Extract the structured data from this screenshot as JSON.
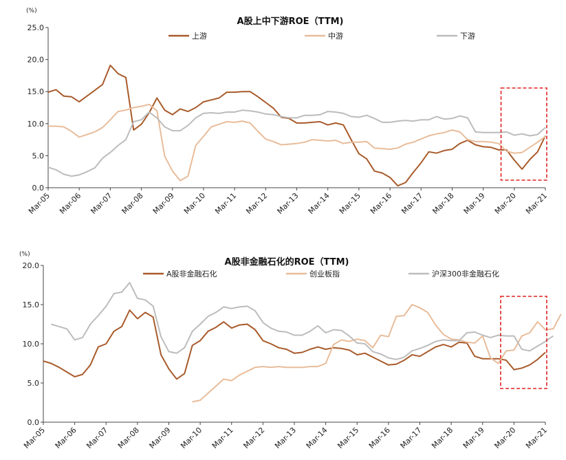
{
  "chart_data": [
    {
      "type": "line",
      "title": "A股上中下游ROE（TTM)",
      "unit": "(%)",
      "ylim": [
        0,
        25
      ],
      "yticks": [
        "0.0",
        "5.0",
        "10.0",
        "15.0",
        "20.0",
        "25.0"
      ],
      "xticks": [
        "Mar-05",
        "Mar-06",
        "Mar-07",
        "Mar-08",
        "Mar-09",
        "Mar-10",
        "Mar-11",
        "Mar-12",
        "Mar-13",
        "Mar-14",
        "Mar-15",
        "Mar-16",
        "Mar-17",
        "Mar-18",
        "Mar-19",
        "Mar-20",
        "Mar-21"
      ],
      "x_start": 2005.0,
      "x_step": 0.25,
      "x_end": 2021.0,
      "legend_position": "top",
      "highlight": {
        "from": 2019.75,
        "to": 2021.0,
        "color": "#e02020"
      },
      "series": [
        {
          "name": "上游",
          "color": "#a85a2a",
          "values": [
            14.9,
            15.3,
            14.3,
            14.2,
            13.4,
            14.3,
            15.2,
            16.1,
            19.1,
            17.8,
            17.2,
            9.0,
            9.9,
            11.7,
            14.0,
            12.1,
            11.4,
            12.3,
            11.9,
            12.5,
            13.4,
            13.7,
            14.0,
            14.9,
            14.9,
            15.0,
            15.0,
            14.2,
            13.3,
            12.4,
            11.0,
            10.8,
            10.1,
            10.1,
            10.2,
            10.3,
            9.8,
            10.1,
            9.8,
            7.5,
            5.3,
            4.5,
            2.6,
            2.3,
            1.6,
            0.3,
            0.8,
            2.4,
            3.9,
            5.6,
            5.4,
            5.8,
            6.0,
            6.9,
            7.4,
            6.7,
            6.4,
            6.3,
            5.9,
            5.9,
            4.3,
            2.9,
            4.4,
            5.6,
            8.1
          ]
        },
        {
          "name": "中游",
          "color": "#e8bc9a",
          "values": [
            9.6,
            9.6,
            9.5,
            8.8,
            7.9,
            8.3,
            8.7,
            9.4,
            10.6,
            11.9,
            12.1,
            12.5,
            12.7,
            13.0,
            12.0,
            4.9,
            2.6,
            1.1,
            1.8,
            6.6,
            8.0,
            9.5,
            9.9,
            10.3,
            10.2,
            10.4,
            10.1,
            8.8,
            7.6,
            7.2,
            6.7,
            6.8,
            6.9,
            7.1,
            7.5,
            7.4,
            7.3,
            7.4,
            6.9,
            7.1,
            7.1,
            7.2,
            6.2,
            6.1,
            6.0,
            6.2,
            6.8,
            7.1,
            7.6,
            8.1,
            8.4,
            8.6,
            9.0,
            8.7,
            7.5,
            7.2,
            7.2,
            7.1,
            6.9,
            5.7,
            5.4,
            5.5,
            6.3,
            7.1,
            8.0
          ]
        },
        {
          "name": "下游",
          "color": "#bcbcbc",
          "values": [
            3.2,
            2.8,
            2.1,
            1.8,
            2.0,
            2.5,
            3.1,
            4.6,
            5.5,
            6.6,
            7.5,
            10.3,
            10.6,
            11.8,
            10.9,
            9.5,
            8.9,
            8.9,
            9.7,
            10.9,
            11.6,
            11.7,
            11.6,
            11.8,
            11.8,
            12.1,
            12.0,
            11.8,
            11.5,
            11.4,
            11.1,
            10.9,
            10.9,
            11.3,
            11.3,
            11.4,
            11.9,
            11.8,
            11.6,
            11.1,
            11.0,
            11.3,
            10.8,
            10.2,
            10.2,
            10.4,
            10.5,
            10.4,
            10.6,
            10.6,
            11.1,
            10.7,
            10.8,
            11.2,
            10.9,
            8.7,
            8.6,
            8.6,
            8.6,
            8.7,
            8.2,
            8.4,
            8.1,
            8.3,
            9.4
          ]
        }
      ]
    },
    {
      "type": "line",
      "title": "A股非金融石化的ROE（TTM)",
      "unit": "(%)",
      "ylim": [
        0,
        20
      ],
      "yticks": [
        "0.0",
        "5.0",
        "10.0",
        "15.0",
        "20.0"
      ],
      "xticks": [
        "Mar-05",
        "Mar-06",
        "Mar-07",
        "Mar-08",
        "Mar-09",
        "Mar-10",
        "Mar-11",
        "Mar-12",
        "Mar-13",
        "Mar-14",
        "Mar-15",
        "Mar-16",
        "Mar-17",
        "Mar-18",
        "Mar-19",
        "Mar-20",
        "Mar-21"
      ],
      "x_start": 2005.0,
      "x_step": 0.25,
      "x_end": 2021.0,
      "legend_position": "top",
      "highlight": {
        "from": 2019.75,
        "to": 2021.0,
        "color": "#e02020"
      },
      "series": [
        {
          "name": "A股非金融石化",
          "color": "#a85a2a",
          "start": 2005.0,
          "values": [
            7.8,
            7.5,
            7.0,
            6.4,
            5.8,
            6.1,
            7.3,
            9.6,
            10.0,
            11.6,
            12.2,
            14.3,
            13.2,
            14.0,
            13.4,
            8.6,
            6.8,
            5.5,
            6.2,
            9.8,
            10.4,
            11.6,
            12.1,
            12.8,
            12.0,
            12.4,
            12.5,
            11.8,
            10.4,
            10.0,
            9.5,
            9.3,
            8.8,
            8.9,
            9.3,
            9.6,
            9.3,
            9.5,
            9.4,
            9.2,
            8.6,
            8.8,
            8.3,
            7.8,
            7.3,
            7.4,
            7.9,
            8.6,
            8.4,
            9.0,
            9.6,
            9.9,
            9.6,
            10.2,
            10.1,
            8.4,
            8.1,
            8.1,
            8.1,
            7.9,
            6.7,
            6.9,
            7.3,
            8.0,
            8.9
          ]
        },
        {
          "name": "创业板指",
          "color": "#e8bc9a",
          "start": 2009.75,
          "values": [
            2.6,
            2.8,
            3.7,
            4.6,
            5.5,
            5.3,
            6.0,
            6.5,
            7.0,
            7.1,
            7.0,
            7.1,
            7.0,
            7.0,
            7.0,
            7.1,
            7.1,
            7.5,
            9.9,
            10.5,
            10.3,
            10.6,
            10.4,
            9.5,
            11.1,
            10.9,
            13.5,
            13.6,
            15.0,
            14.6,
            14.0,
            12.4,
            11.2,
            10.6,
            10.5,
            10.2,
            10.1,
            11.0,
            8.2,
            7.5,
            9.1,
            9.2,
            11.0,
            11.4,
            12.8,
            11.8,
            11.9,
            13.8
          ]
        },
        {
          "name": "沪深300非金融石化",
          "color": "#bcbcbc",
          "start": 2005.25,
          "values": [
            12.5,
            12.2,
            11.9,
            10.5,
            10.8,
            12.5,
            13.6,
            14.8,
            16.4,
            16.6,
            17.8,
            15.8,
            15.6,
            14.8,
            10.9,
            9.0,
            8.8,
            9.5,
            11.6,
            12.5,
            13.5,
            14.0,
            14.7,
            14.5,
            14.7,
            14.8,
            14.2,
            12.7,
            12.0,
            11.6,
            11.5,
            11.1,
            11.1,
            11.6,
            12.3,
            11.4,
            11.8,
            11.7,
            11.0,
            10.1,
            10.0,
            9.0,
            8.7,
            8.2,
            8.0,
            8.3,
            9.1,
            9.4,
            9.8,
            10.3,
            10.5,
            10.4,
            10.4,
            11.4,
            11.5,
            11.1,
            10.8,
            11.1,
            11.0,
            11.0,
            9.3,
            9.1,
            9.7,
            10.3,
            11.0
          ]
        }
      ]
    }
  ]
}
